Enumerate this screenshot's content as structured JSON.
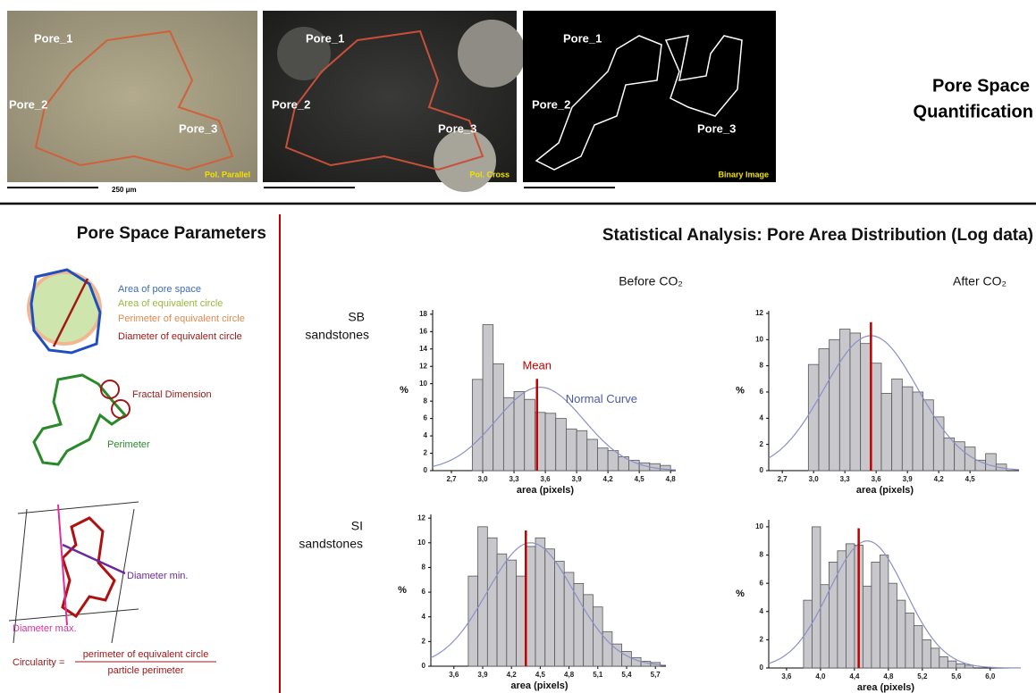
{
  "header": {
    "title": [
      "Pore Space",
      "Quantification"
    ],
    "images": [
      {
        "caption": "Pol. Parallel",
        "labels": [
          "Pore_1",
          "Pore_2",
          "Pore_3"
        ]
      },
      {
        "caption": "Pol. Cross",
        "labels": [
          "Pore_1",
          "Pore_2",
          "Pore_3"
        ]
      },
      {
        "caption": "Binary Image",
        "labels": [
          "Pore_1",
          "Pore_2",
          "Pore_3"
        ]
      }
    ],
    "scale_label": "250 μm"
  },
  "parameters": {
    "title": "Pore Space Parameters",
    "legend": [
      "Area of pore space",
      "Area of equivalent circle",
      "Perimeter of equivalent circle",
      "Diameter of equivalent circle"
    ],
    "fractal": "Fractal Dimension",
    "perimeter": "Perimeter",
    "diameter_min": "Diameter min.",
    "diameter_max": "Diameter max.",
    "circularity": {
      "label": "Circularity =",
      "numerator": "perimeter of equivalent circle",
      "denominator": "particle perimeter"
    }
  },
  "statistics": {
    "title": "Statistical Analysis: Pore Area Distribution (Log data)",
    "columns": [
      "Before CO₂",
      "After CO₂"
    ],
    "rows": [
      [
        "SB",
        "sandstones"
      ],
      [
        "SI",
        "sandstones"
      ]
    ]
  },
  "chart_data": [
    {
      "type": "histogram",
      "color": "#c8c8cc",
      "bins": [
        2.9,
        3.0,
        3.1,
        3.2,
        3.3,
        3.4,
        3.5,
        3.6,
        3.7,
        3.8,
        3.9,
        4.0,
        4.1,
        4.2,
        4.3,
        4.4,
        4.5,
        4.6,
        4.7,
        4.8
      ],
      "values": [
        10.5,
        16.8,
        12.3,
        8.4,
        9.1,
        8.2,
        6.7,
        6.6,
        6.0,
        4.8,
        4.6,
        3.6,
        2.6,
        2.3,
        1.6,
        1.2,
        0.9,
        0.8,
        0.6
      ],
      "xlim": [
        2.52,
        4.85
      ],
      "ylim": [
        0,
        18.5
      ],
      "xticks": [
        {
          "value": 2.7,
          "label": "2,7"
        },
        {
          "value": 3.0,
          "label": "3,0"
        },
        {
          "value": 3.3,
          "label": "3,3"
        },
        {
          "value": 3.6,
          "label": "3,6"
        },
        {
          "value": 3.9,
          "label": "3,9"
        },
        {
          "value": 4.2,
          "label": "4,2"
        },
        {
          "value": 4.5,
          "label": "4,5"
        },
        {
          "value": 4.8,
          "label": "4,8"
        }
      ],
      "yticks": [
        0,
        2,
        4,
        6,
        8,
        10,
        12,
        14,
        16,
        18
      ],
      "x_label": "area (pixels)",
      "y_label": "%",
      "mean": 3.52,
      "mean_color": "#c00000",
      "normal_curve": {
        "mean": 3.55,
        "sd": 0.42,
        "peak": 9.6,
        "color": "#8a8fc8"
      },
      "annotations": {
        "mean": "Mean",
        "curve": "Normal Curve"
      }
    },
    {
      "type": "histogram",
      "color": "#c8c8cc",
      "bins": [
        2.95,
        3.05,
        3.15,
        3.25,
        3.35,
        3.45,
        3.55,
        3.65,
        3.75,
        3.85,
        3.95,
        4.05,
        4.15,
        4.25,
        4.35,
        4.45,
        4.55,
        4.65,
        4.75,
        4.85
      ],
      "values": [
        8.1,
        9.3,
        10.0,
        10.8,
        10.5,
        9.7,
        8.2,
        5.9,
        7.0,
        6.4,
        6.0,
        5.4,
        4.1,
        2.5,
        2.2,
        1.8,
        0.8,
        1.3,
        0.5
      ],
      "xlim": [
        2.57,
        4.97
      ],
      "ylim": [
        0,
        12.2
      ],
      "xticks": [
        {
          "value": 2.7,
          "label": "2,7"
        },
        {
          "value": 3.0,
          "label": "3,0"
        },
        {
          "value": 3.3,
          "label": "3,3"
        },
        {
          "value": 3.6,
          "label": "3,6"
        },
        {
          "value": 3.9,
          "label": "3,9"
        },
        {
          "value": 4.2,
          "label": "4,2"
        },
        {
          "value": 4.5,
          "label": "4,5"
        }
      ],
      "yticks": [
        0,
        2,
        4,
        6,
        8,
        10,
        12
      ],
      "x_label": "area (pixels)",
      "y_label": "%",
      "mean": 3.55,
      "mean_color": "#c00000",
      "normal_curve": {
        "mean": 3.55,
        "sd": 0.45,
        "peak": 10.3,
        "color": "#8a8fc8"
      }
    },
    {
      "type": "histogram",
      "color": "#c8c8cc",
      "bins": [
        3.75,
        3.85,
        3.95,
        4.05,
        4.15,
        4.25,
        4.35,
        4.45,
        4.55,
        4.65,
        4.75,
        4.85,
        4.95,
        5.05,
        5.15,
        5.25,
        5.35,
        5.45,
        5.55,
        5.65,
        5.75
      ],
      "values": [
        7.3,
        11.3,
        10.4,
        9.1,
        8.6,
        7.3,
        9.7,
        10.4,
        9.5,
        8.5,
        7.6,
        6.7,
        5.8,
        4.8,
        2.8,
        1.8,
        1.2,
        0.7,
        0.4,
        0.3
      ],
      "xlim": [
        3.36,
        5.81
      ],
      "ylim": [
        0,
        12.3
      ],
      "xticks": [
        {
          "value": 3.6,
          "label": "3,6"
        },
        {
          "value": 3.9,
          "label": "3,9"
        },
        {
          "value": 4.2,
          "label": "4,2"
        },
        {
          "value": 4.5,
          "label": "4,5"
        },
        {
          "value": 4.8,
          "label": "4,8"
        },
        {
          "value": 5.1,
          "label": "5,1"
        },
        {
          "value": 5.4,
          "label": "5,4"
        },
        {
          "value": 5.7,
          "label": "5,7"
        }
      ],
      "yticks": [
        0,
        2,
        4,
        6,
        8,
        10,
        12
      ],
      "x_label": "area (pixels)",
      "y_label": "%",
      "mean": 4.35,
      "mean_color": "#c00000",
      "normal_curve": {
        "mean": 4.4,
        "sd": 0.45,
        "peak": 10.0,
        "color": "#8a8fc8"
      }
    },
    {
      "type": "histogram",
      "color": "#c8c8cc",
      "bins": [
        3.8,
        3.9,
        4.0,
        4.1,
        4.2,
        4.3,
        4.4,
        4.5,
        4.6,
        4.7,
        4.8,
        4.9,
        5.0,
        5.1,
        5.2,
        5.3,
        5.4,
        5.5,
        5.6,
        5.7,
        5.8
      ],
      "values": [
        4.8,
        10.0,
        5.9,
        7.5,
        8.3,
        8.8,
        8.7,
        5.8,
        7.5,
        8.0,
        6.0,
        4.8,
        3.9,
        3.0,
        2.0,
        1.4,
        0.8,
        0.5,
        0.3,
        0.2
      ],
      "xlim": [
        3.39,
        6.36
      ],
      "ylim": [
        0,
        10.5
      ],
      "xticks": [
        {
          "value": 3.6,
          "label": "3,6"
        },
        {
          "value": 4.0,
          "label": "4,0"
        },
        {
          "value": 4.4,
          "label": "4,4"
        },
        {
          "value": 4.8,
          "label": "4,8"
        },
        {
          "value": 5.2,
          "label": "5,2"
        },
        {
          "value": 5.6,
          "label": "5,6"
        },
        {
          "value": 6.0,
          "label": "6,0"
        }
      ],
      "yticks": [
        0,
        2,
        4,
        6,
        8,
        10
      ],
      "x_label": "area (pixels)",
      "y_label": "%",
      "mean": 4.45,
      "mean_color": "#c00000",
      "normal_curve": {
        "mean": 4.55,
        "sd": 0.45,
        "peak": 9.0,
        "color": "#8a8fc8"
      }
    }
  ]
}
